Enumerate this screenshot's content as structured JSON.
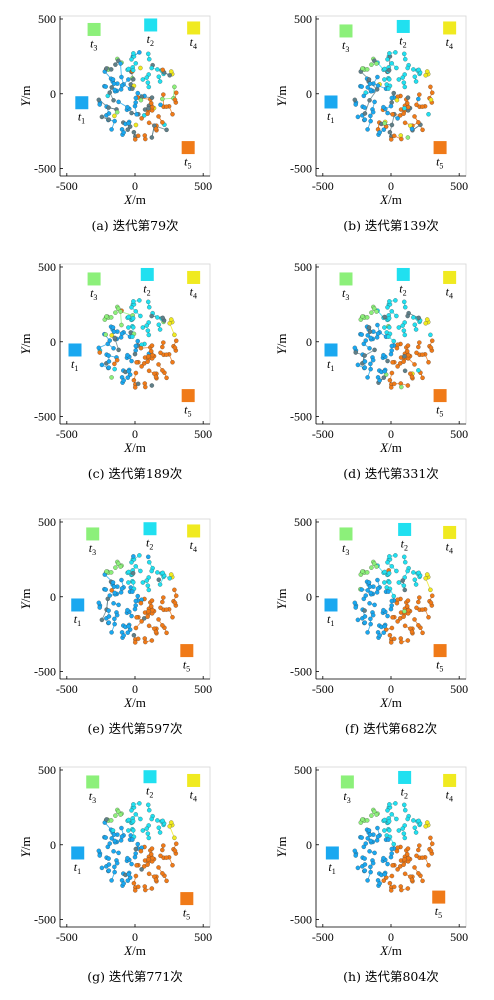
{
  "colors": {
    "t1": "#1aa8f0",
    "t2": "#20e0f0",
    "t3": "#8cf07a",
    "t4": "#f0ea20",
    "t5": "#f07a18",
    "unassigned": "#5f7f88"
  },
  "chart_data": [
    {
      "type": "scatter",
      "caption": "(a) 迭代第79次",
      "xlabel": "X/m",
      "ylabel": "Y/m",
      "xlim": [
        -550,
        550
      ],
      "ylim": [
        -550,
        520
      ],
      "xticks": [
        -500,
        0,
        500
      ],
      "yticks": [
        -500,
        0,
        500
      ],
      "grid": false,
      "mix": 0.45,
      "targets": [
        {
          "name": "t1",
          "x": -390,
          "y": -60,
          "label": "t",
          "sub": "1"
        },
        {
          "name": "t2",
          "x": 115,
          "y": 460,
          "label": "t",
          "sub": "2"
        },
        {
          "name": "t3",
          "x": -300,
          "y": 430,
          "label": "t",
          "sub": "3"
        },
        {
          "name": "t4",
          "x": 430,
          "y": 440,
          "label": "t",
          "sub": "4"
        },
        {
          "name": "t5",
          "x": 390,
          "y": -360,
          "label": "t",
          "sub": "5"
        }
      ]
    },
    {
      "type": "scatter",
      "caption": "(b) 迭代第139次",
      "xlabel": "X/m",
      "ylabel": "Y/m",
      "xlim": [
        -550,
        550
      ],
      "ylim": [
        -550,
        520
      ],
      "xticks": [
        -500,
        0,
        500
      ],
      "yticks": [
        -500,
        0,
        500
      ],
      "grid": false,
      "mix": 0.32,
      "targets": [
        {
          "name": "t1",
          "x": -440,
          "y": -55,
          "label": "t",
          "sub": "1"
        },
        {
          "name": "t2",
          "x": 90,
          "y": 450,
          "label": "t",
          "sub": "2"
        },
        {
          "name": "t3",
          "x": -330,
          "y": 420,
          "label": "t",
          "sub": "3"
        },
        {
          "name": "t4",
          "x": 430,
          "y": 440,
          "label": "t",
          "sub": "4"
        },
        {
          "name": "t5",
          "x": 360,
          "y": -360,
          "label": "t",
          "sub": "5"
        }
      ]
    },
    {
      "type": "scatter",
      "caption": "(c) 迭代第189次",
      "xlabel": "X/m",
      "ylabel": "Y/m",
      "xlim": [
        -550,
        550
      ],
      "ylim": [
        -550,
        520
      ],
      "xticks": [
        -500,
        0,
        500
      ],
      "yticks": [
        -500,
        0,
        500
      ],
      "grid": false,
      "mix": 0.22,
      "targets": [
        {
          "name": "t1",
          "x": -440,
          "y": -55,
          "label": "t",
          "sub": "1"
        },
        {
          "name": "t2",
          "x": 90,
          "y": 450,
          "label": "t",
          "sub": "2"
        },
        {
          "name": "t3",
          "x": -300,
          "y": 420,
          "label": "t",
          "sub": "3"
        },
        {
          "name": "t4",
          "x": 430,
          "y": 430,
          "label": "t",
          "sub": "4"
        },
        {
          "name": "t5",
          "x": 390,
          "y": -360,
          "label": "t",
          "sub": "5"
        }
      ]
    },
    {
      "type": "scatter",
      "caption": "(d) 迭代第331次",
      "xlabel": "X/m",
      "ylabel": "Y/m",
      "xlim": [
        -550,
        550
      ],
      "ylim": [
        -550,
        520
      ],
      "xticks": [
        -500,
        0,
        500
      ],
      "yticks": [
        -500,
        0,
        500
      ],
      "grid": false,
      "mix": 0.14,
      "targets": [
        {
          "name": "t1",
          "x": -440,
          "y": -55,
          "label": "t",
          "sub": "1"
        },
        {
          "name": "t2",
          "x": 90,
          "y": 450,
          "label": "t",
          "sub": "2"
        },
        {
          "name": "t3",
          "x": -330,
          "y": 420,
          "label": "t",
          "sub": "3"
        },
        {
          "name": "t4",
          "x": 430,
          "y": 430,
          "label": "t",
          "sub": "4"
        },
        {
          "name": "t5",
          "x": 360,
          "y": -360,
          "label": "t",
          "sub": "5"
        }
      ]
    },
    {
      "type": "scatter",
      "caption": "(e) 迭代第597次",
      "xlabel": "X/m",
      "ylabel": "Y/m",
      "xlim": [
        -550,
        550
      ],
      "ylim": [
        -550,
        520
      ],
      "xticks": [
        -500,
        0,
        500
      ],
      "yticks": [
        -500,
        0,
        500
      ],
      "grid": false,
      "mix": 0.07,
      "targets": [
        {
          "name": "t1",
          "x": -420,
          "y": -55,
          "label": "t",
          "sub": "1"
        },
        {
          "name": "t2",
          "x": 110,
          "y": 455,
          "label": "t",
          "sub": "2"
        },
        {
          "name": "t3",
          "x": -310,
          "y": 420,
          "label": "t",
          "sub": "3"
        },
        {
          "name": "t4",
          "x": 430,
          "y": 440,
          "label": "t",
          "sub": "4"
        },
        {
          "name": "t5",
          "x": 380,
          "y": -360,
          "label": "t",
          "sub": "5"
        }
      ]
    },
    {
      "type": "scatter",
      "caption": "(f) 迭代第682次",
      "xlabel": "X/m",
      "ylabel": "Y/m",
      "xlim": [
        -550,
        550
      ],
      "ylim": [
        -550,
        520
      ],
      "xticks": [
        -500,
        0,
        500
      ],
      "yticks": [
        -500,
        0,
        500
      ],
      "grid": false,
      "mix": 0.05,
      "targets": [
        {
          "name": "t1",
          "x": -440,
          "y": -55,
          "label": "t",
          "sub": "1"
        },
        {
          "name": "t2",
          "x": 100,
          "y": 450,
          "label": "t",
          "sub": "2"
        },
        {
          "name": "t3",
          "x": -330,
          "y": 420,
          "label": "t",
          "sub": "3"
        },
        {
          "name": "t4",
          "x": 430,
          "y": 430,
          "label": "t",
          "sub": "4"
        },
        {
          "name": "t5",
          "x": 360,
          "y": -360,
          "label": "t",
          "sub": "5"
        }
      ]
    },
    {
      "type": "scatter",
      "caption": "(g) 迭代第771次",
      "xlabel": "X/m",
      "ylabel": "Y/m",
      "xlim": [
        -550,
        550
      ],
      "ylim": [
        -550,
        520
      ],
      "xticks": [
        -500,
        0,
        500
      ],
      "yticks": [
        -500,
        0,
        500
      ],
      "grid": false,
      "mix": 0.03,
      "targets": [
        {
          "name": "t1",
          "x": -420,
          "y": -55,
          "label": "t",
          "sub": "1"
        },
        {
          "name": "t2",
          "x": 110,
          "y": 455,
          "label": "t",
          "sub": "2"
        },
        {
          "name": "t3",
          "x": -310,
          "y": 420,
          "label": "t",
          "sub": "3"
        },
        {
          "name": "t4",
          "x": 430,
          "y": 430,
          "label": "t",
          "sub": "4"
        },
        {
          "name": "t5",
          "x": 380,
          "y": -360,
          "label": "t",
          "sub": "5"
        }
      ]
    },
    {
      "type": "scatter",
      "caption": "(h) 迭代第804次",
      "xlabel": "X/m",
      "ylabel": "Y/m",
      "xlim": [
        -550,
        550
      ],
      "ylim": [
        -550,
        520
      ],
      "xticks": [
        -500,
        0,
        500
      ],
      "yticks": [
        -500,
        0,
        500
      ],
      "grid": false,
      "mix": 0.0,
      "targets": [
        {
          "name": "t1",
          "x": -430,
          "y": -55,
          "label": "t",
          "sub": "1"
        },
        {
          "name": "t2",
          "x": 100,
          "y": 450,
          "label": "t",
          "sub": "2"
        },
        {
          "name": "t3",
          "x": -320,
          "y": 420,
          "label": "t",
          "sub": "3"
        },
        {
          "name": "t4",
          "x": 430,
          "y": 430,
          "label": "t",
          "sub": "4"
        },
        {
          "name": "t5",
          "x": 350,
          "y": -350,
          "label": "t",
          "sub": "5"
        }
      ]
    }
  ]
}
